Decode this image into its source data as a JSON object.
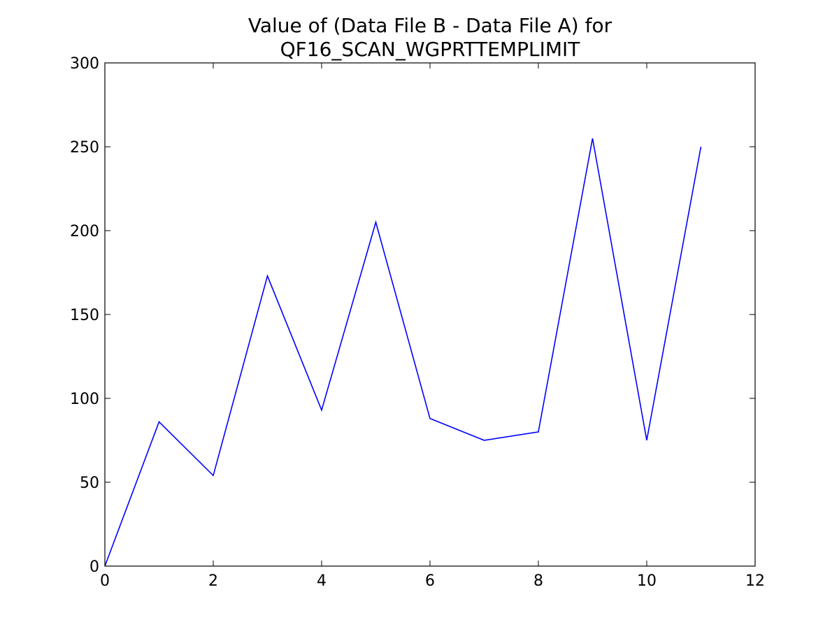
{
  "chart_data": {
    "type": "line",
    "title": [
      "Value of (Data File B - Data File A) for",
      "QF16_SCAN_WGPRTTEMPLIMIT"
    ],
    "x": [
      0,
      1,
      2,
      3,
      4,
      5,
      6,
      7,
      8,
      9,
      10,
      11
    ],
    "values": [
      0,
      86,
      54,
      173,
      93,
      205,
      88,
      75,
      80,
      255,
      75,
      250
    ],
    "color": "#0000ff",
    "xlim": [
      0,
      12
    ],
    "xticks": [
      0,
      2,
      4,
      6,
      8,
      10,
      12
    ],
    "ylim": [
      0,
      300
    ],
    "yticks": [
      0,
      50,
      100,
      150,
      200,
      250,
      300
    ],
    "grid": false
  }
}
